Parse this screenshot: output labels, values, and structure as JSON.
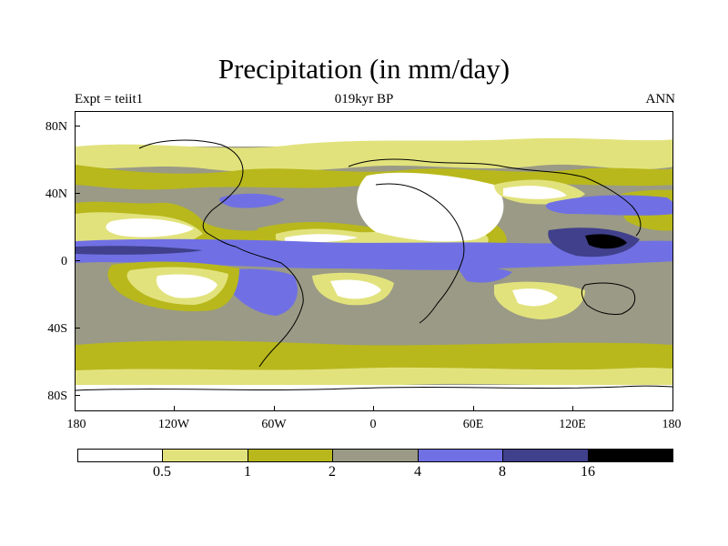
{
  "title": "Precipitation (in mm/day)",
  "left_subtitle": "Expt = teiit1",
  "center_subtitle": "019kyr BP",
  "right_subtitle": "ANN",
  "lat_labels": [
    "80N",
    "40N",
    "0",
    "40S",
    "80S"
  ],
  "lon_labels": [
    "180",
    "120W",
    "60W",
    "0",
    "60E",
    "120E",
    "180"
  ],
  "colorbar": {
    "colors": [
      "#ffffff",
      "#e2e27d",
      "#b8b81c",
      "#9a9a86",
      "#7070e4",
      "#40408c",
      "#000000"
    ],
    "labels": [
      "0.5",
      "1",
      "2",
      "4",
      "8",
      "16"
    ]
  },
  "palette": {
    "lt05": "#ffffff",
    "b05_1": "#e2e27d",
    "b1_2": "#b8b81c",
    "b2_4": "#9a9a86",
    "b4_8": "#7070e4",
    "b8_16": "#40408c",
    "gt16": "#000000"
  }
}
